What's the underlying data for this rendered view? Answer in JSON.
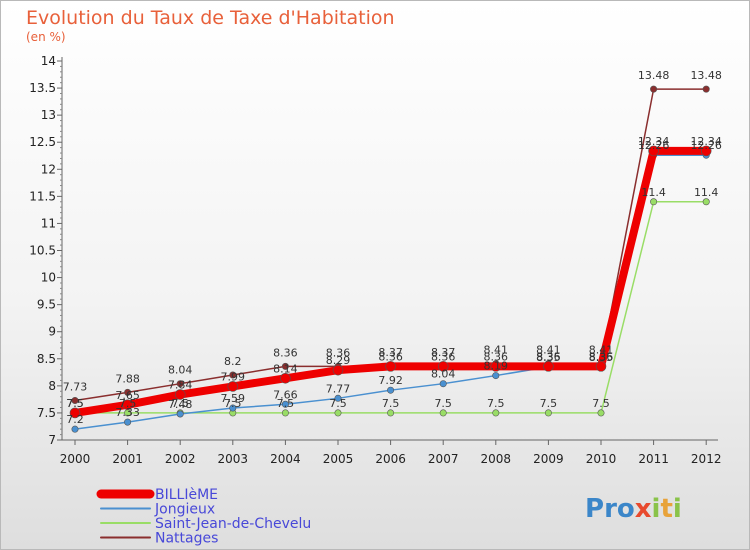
{
  "title": "Evolution du Taux de Taxe d'Habitation",
  "subtitle": "(en %)",
  "logo": {
    "text": "Proxiti",
    "letters": [
      "P",
      "r",
      "o",
      "x",
      "i",
      "t",
      "i"
    ],
    "colors": [
      "#3b86c9",
      "#3b86c9",
      "#3b86c9",
      "#e84a2e",
      "#8ac34a",
      "#e8a33a",
      "#8ac34a"
    ]
  },
  "chart_data": {
    "type": "line",
    "title": "Evolution du Taux de Taxe d'Habitation",
    "ylabel": "(en %)",
    "xlabel": "",
    "x": [
      "2000",
      "2001",
      "2002",
      "2003",
      "2004",
      "2005",
      "2006",
      "2007",
      "2008",
      "2009",
      "2010",
      "2011",
      "2012"
    ],
    "ylim": [
      7,
      14
    ],
    "yticks": [
      "7",
      "7.5",
      "8",
      "8.5",
      "9",
      "9.5",
      "10",
      "10.5",
      "11",
      "11.5",
      "12",
      "12.5",
      "13",
      "13.5",
      "14"
    ],
    "grid": false,
    "legend_position": "bottom-left",
    "series": [
      {
        "name": "BILLIèME",
        "color": "#ee0000",
        "values": [
          7.5,
          7.65,
          7.84,
          7.99,
          8.14,
          8.29,
          8.36,
          8.36,
          8.36,
          8.36,
          8.36,
          12.34,
          12.34
        ],
        "labels": [
          "7.5",
          "7.65",
          "7.84",
          "7.99",
          "8.14",
          "8.29",
          "8.36",
          "8.36",
          "8.36",
          "8.36",
          "8.36",
          "12.34",
          "12.34"
        ]
      },
      {
        "name": "Jongieux",
        "color": "#4a90d0",
        "values": [
          7.2,
          7.33,
          7.48,
          7.59,
          7.66,
          7.77,
          7.92,
          8.04,
          8.19,
          8.35,
          8.35,
          12.26,
          12.26
        ],
        "labels": [
          "7.2",
          "7.33",
          "7.48",
          "7.59",
          "7.66",
          "7.77",
          "7.92",
          "8.04",
          "8.19",
          "8.35",
          "8.35",
          "12.26",
          "12.26"
        ]
      },
      {
        "name": "Saint-Jean-de-Chevelu",
        "color": "#99dd66",
        "values": [
          7.5,
          7.5,
          7.5,
          7.5,
          7.5,
          7.5,
          7.5,
          7.5,
          7.5,
          7.5,
          7.5,
          11.4,
          11.4
        ],
        "labels": [
          "7.5",
          "7.5",
          "7.5",
          "7.5",
          "7.5",
          "7.5",
          "7.5",
          "7.5",
          "7.5",
          "7.5",
          "7.5",
          "11.4",
          "11.4"
        ]
      },
      {
        "name": "Nattages",
        "color": "#8a2e2e",
        "values": [
          7.73,
          7.88,
          8.04,
          8.2,
          8.36,
          8.36,
          8.37,
          8.37,
          8.41,
          8.41,
          8.41,
          13.48,
          13.48
        ],
        "labels": [
          "7.73",
          "7.88",
          "8.04",
          "8.2",
          "8.36",
          "8.36",
          "8.37",
          "8.37",
          "8.41",
          "8.41",
          "8.41",
          "13.48",
          "13.48"
        ]
      }
    ]
  }
}
